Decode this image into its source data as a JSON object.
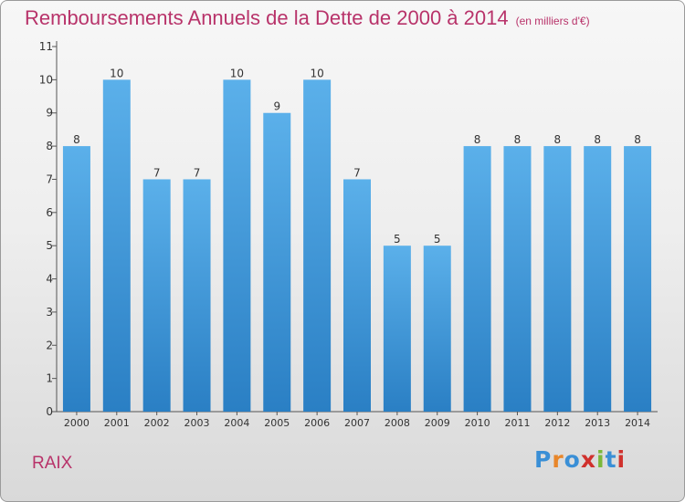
{
  "title": "Remboursements Annuels de la Dette de 2000 à 2014",
  "unit": "(en milliers d'€)",
  "commune": "RAIX",
  "logo": {
    "text": "Proxiti",
    "letters": [
      "P",
      "r",
      "o",
      "x",
      "i",
      "t",
      "i"
    ],
    "colors": [
      "#3a8fd6",
      "#e8862a",
      "#3a8fd6",
      "#d0312d",
      "#7bb83a",
      "#3a8fd6",
      "#d0312d"
    ]
  },
  "colors": {
    "bar": "#3f96dc",
    "title": "#b8336a",
    "axis": "#555555"
  },
  "chart_data": {
    "type": "bar",
    "title": "Remboursements Annuels de la Dette de 2000 à 2014",
    "subtitle": "(en milliers d'€)",
    "categories": [
      "2000",
      "2001",
      "2002",
      "2003",
      "2004",
      "2005",
      "2006",
      "2007",
      "2008",
      "2009",
      "2010",
      "2011",
      "2012",
      "2013",
      "2014"
    ],
    "values": [
      8,
      10,
      7,
      7,
      10,
      9,
      10,
      7,
      5,
      5,
      8,
      8,
      8,
      8,
      8
    ],
    "yticks": [
      0,
      1,
      2,
      3,
      4,
      5,
      6,
      7,
      8,
      9,
      10,
      11
    ],
    "ylim": [
      0,
      11
    ],
    "grid": false,
    "data_labels": true
  }
}
